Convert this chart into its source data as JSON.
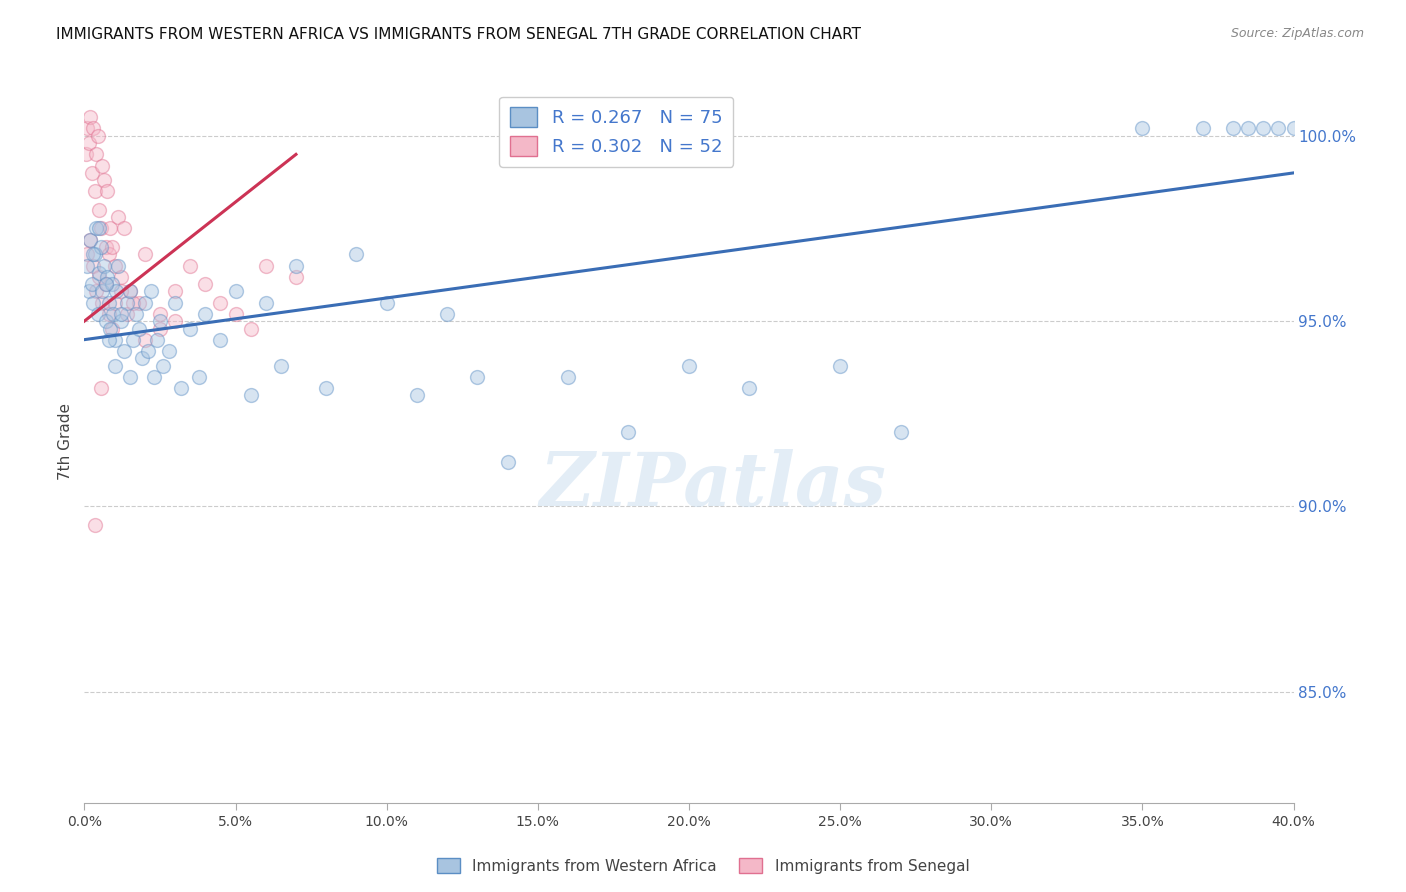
{
  "title": "IMMIGRANTS FROM WESTERN AFRICA VS IMMIGRANTS FROM SENEGAL 7TH GRADE CORRELATION CHART",
  "source": "Source: ZipAtlas.com",
  "ylabel": "7th Grade",
  "x_tick_labels": [
    "0.0%",
    "5.0%",
    "10.0%",
    "15.0%",
    "20.0%",
    "25.0%",
    "30.0%",
    "35.0%",
    "40.0%"
  ],
  "x_ticks": [
    0.0,
    5.0,
    10.0,
    15.0,
    20.0,
    25.0,
    30.0,
    35.0,
    40.0
  ],
  "y_tick_labels_right": [
    "100.0%",
    "95.0%",
    "90.0%",
    "85.0%"
  ],
  "y_ticks_right": [
    100.0,
    95.0,
    90.0,
    85.0
  ],
  "xlim": [
    0.0,
    40.0
  ],
  "ylim": [
    82.0,
    101.5
  ],
  "legend_entry1": "R = 0.267   N = 75",
  "legend_entry2": "R = 0.302   N = 52",
  "legend_label1": "Immigrants from Western Africa",
  "legend_label2": "Immigrants from Senegal",
  "watermark": "ZIPatlas",
  "blue_scatter_x": [
    0.1,
    0.15,
    0.2,
    0.25,
    0.3,
    0.35,
    0.4,
    0.45,
    0.5,
    0.55,
    0.6,
    0.65,
    0.7,
    0.75,
    0.8,
    0.85,
    0.9,
    0.95,
    1.0,
    1.05,
    1.1,
    1.2,
    1.3,
    1.4,
    1.5,
    1.6,
    1.7,
    1.8,
    1.9,
    2.0,
    2.1,
    2.2,
    2.3,
    2.4,
    2.5,
    2.6,
    2.8,
    3.0,
    3.2,
    3.5,
    3.8,
    4.0,
    4.5,
    5.0,
    5.5,
    6.0,
    6.5,
    7.0,
    8.0,
    9.0,
    10.0,
    11.0,
    12.0,
    13.0,
    14.0,
    16.0,
    18.0,
    20.0,
    22.0,
    25.0,
    27.0,
    35.0,
    37.0,
    38.0,
    38.5,
    39.0,
    39.5,
    40.0,
    0.3,
    0.5,
    0.7,
    0.8,
    1.0,
    1.2,
    1.5
  ],
  "blue_scatter_y": [
    96.5,
    95.8,
    97.2,
    96.0,
    95.5,
    96.8,
    97.5,
    95.2,
    96.3,
    97.0,
    95.8,
    96.5,
    95.0,
    96.2,
    95.5,
    94.8,
    96.0,
    95.2,
    94.5,
    95.8,
    96.5,
    95.0,
    94.2,
    95.5,
    95.8,
    94.5,
    95.2,
    94.8,
    94.0,
    95.5,
    94.2,
    95.8,
    93.5,
    94.5,
    95.0,
    93.8,
    94.2,
    95.5,
    93.2,
    94.8,
    93.5,
    95.2,
    94.5,
    95.8,
    93.0,
    95.5,
    93.8,
    96.5,
    93.2,
    96.8,
    95.5,
    93.0,
    95.2,
    93.5,
    91.2,
    93.5,
    92.0,
    93.8,
    93.2,
    93.8,
    92.0,
    100.2,
    100.2,
    100.2,
    100.2,
    100.2,
    100.2,
    100.2,
    96.8,
    97.5,
    96.0,
    94.5,
    93.8,
    95.2,
    93.5
  ],
  "pink_scatter_x": [
    0.05,
    0.1,
    0.15,
    0.2,
    0.25,
    0.3,
    0.35,
    0.4,
    0.45,
    0.5,
    0.55,
    0.6,
    0.65,
    0.7,
    0.75,
    0.8,
    0.85,
    0.9,
    1.0,
    1.1,
    1.2,
    1.3,
    1.5,
    1.8,
    2.0,
    2.5,
    3.0,
    3.5,
    4.0,
    5.0,
    6.0,
    0.1,
    0.2,
    0.3,
    0.4,
    0.5,
    0.6,
    0.7,
    0.8,
    0.9,
    1.0,
    1.2,
    1.4,
    1.6,
    2.0,
    2.5,
    3.0,
    4.5,
    5.5,
    7.0,
    0.35,
    0.55
  ],
  "pink_scatter_y": [
    99.5,
    100.2,
    99.8,
    100.5,
    99.0,
    100.2,
    98.5,
    99.5,
    100.0,
    98.0,
    97.5,
    99.2,
    98.8,
    97.0,
    98.5,
    96.8,
    97.5,
    97.0,
    96.5,
    97.8,
    96.2,
    97.5,
    95.8,
    95.5,
    96.8,
    95.2,
    95.8,
    96.5,
    96.0,
    95.2,
    96.5,
    96.8,
    97.2,
    96.5,
    95.8,
    96.2,
    95.5,
    96.0,
    95.2,
    94.8,
    95.5,
    95.8,
    95.2,
    95.5,
    94.5,
    94.8,
    95.0,
    95.5,
    94.8,
    96.2,
    89.5,
    93.2
  ],
  "blue_line_x": [
    0.0,
    40.0
  ],
  "blue_line_y": [
    94.5,
    99.0
  ],
  "pink_line_x": [
    0.0,
    7.0
  ],
  "pink_line_y": [
    95.0,
    99.5
  ],
  "scatter_size": 100,
  "scatter_alpha": 0.45,
  "blue_marker_face": "#a8c4e0",
  "blue_marker_edge": "#5b8ec4",
  "pink_marker_face": "#f4b8c8",
  "pink_marker_edge": "#e07090",
  "blue_line_color": "#3a6db5",
  "pink_line_color": "#cc3355",
  "right_axis_color": "#4477cc",
  "grid_color": "#cccccc",
  "title_fontsize": 11,
  "source_fontsize": 9
}
